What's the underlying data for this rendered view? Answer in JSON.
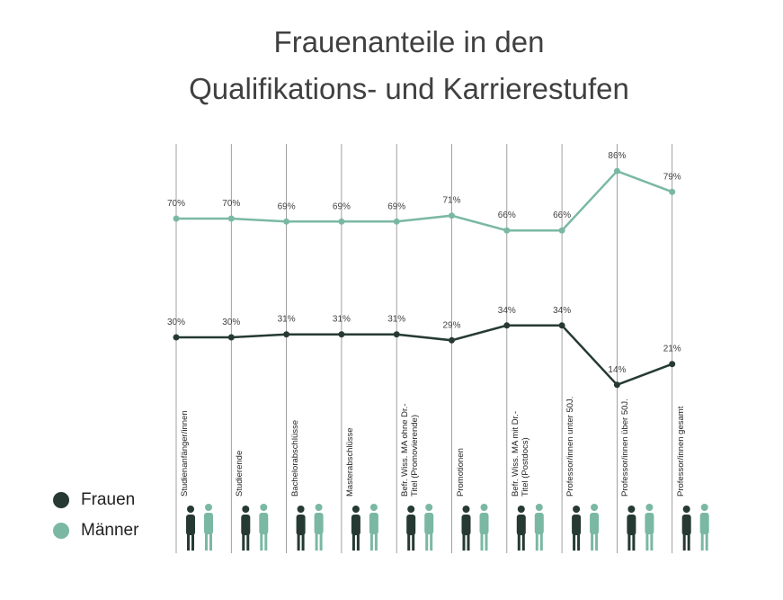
{
  "chart_data": {
    "type": "line",
    "title": [
      "Frauenanteile in den",
      "Qualifikations- und Karrierestufen"
    ],
    "categories": [
      "Studienanfänger/innen",
      "Studierende",
      "Bachelorabschlüsse",
      "Masterabschlüsse",
      "Befr. Wiss. MA ohne Dr.-Titel (Promovierende)",
      "Promotionen",
      "Befr. Wiss. MA mit Dr.-Titel (Postdocs)",
      "Professor/innen unter 50J.",
      "Professor/innen über 50J.",
      "Professor/innen gesamt"
    ],
    "series": [
      {
        "name": "Frauen",
        "color": "#263a33",
        "values": [
          30,
          30,
          31,
          31,
          31,
          29,
          34,
          34,
          14,
          21
        ],
        "value_labels": [
          "30%",
          "30%",
          "31%",
          "31%",
          "31%",
          "29%",
          "34%",
          "34%",
          "14%",
          "21%"
        ]
      },
      {
        "name": "Männer",
        "color": "#7ab8a4",
        "values": [
          70,
          70,
          69,
          69,
          69,
          71,
          66,
          66,
          86,
          79
        ],
        "value_labels": [
          "70%",
          "70%",
          "69%",
          "69%",
          "69%",
          "71%",
          "66%",
          "66%",
          "86%",
          "79%"
        ]
      }
    ],
    "ylim": [
      0,
      100
    ]
  }
}
